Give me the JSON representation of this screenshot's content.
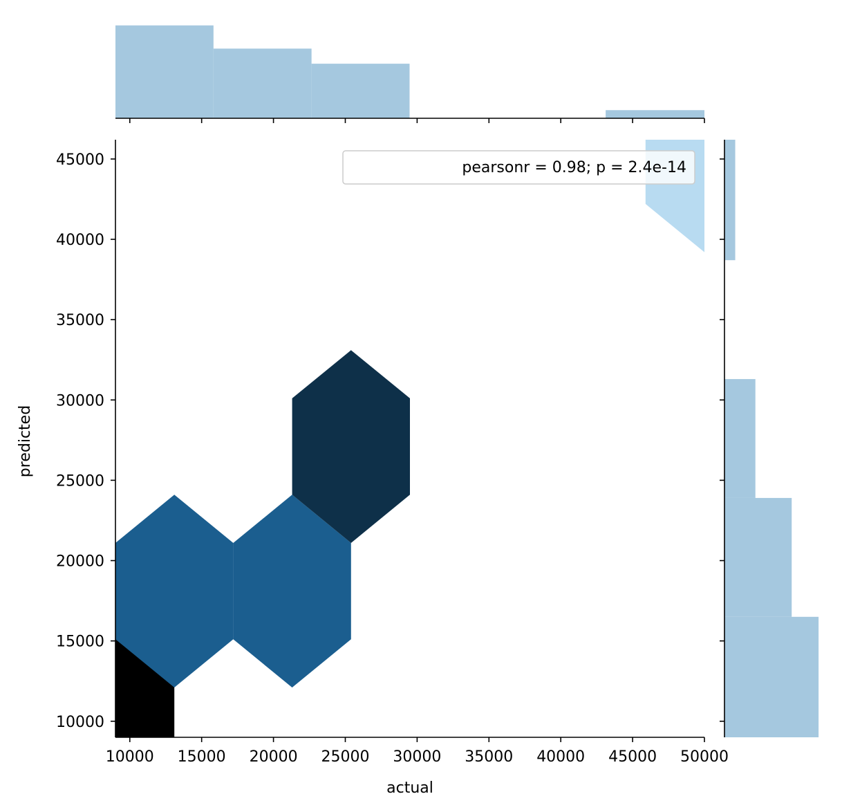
{
  "chart_data": {
    "type": "hexbin",
    "xlabel": "actual",
    "ylabel": "predicted",
    "xlim": [
      9000,
      50000
    ],
    "ylim": [
      9000,
      46200
    ],
    "xticks": [
      10000,
      15000,
      20000,
      25000,
      30000,
      35000,
      40000,
      45000,
      50000
    ],
    "yticks": [
      10000,
      15000,
      20000,
      25000,
      30000,
      35000,
      40000,
      45000
    ],
    "annotation": "pearsonr = 0.98; p = 2.4e-14",
    "legend_position": "upper right",
    "hexbins": [
      {
        "x": 9000,
        "y": 12000,
        "color": "#000000"
      },
      {
        "x": 13100,
        "y": 18100,
        "color": "#1b5e8f"
      },
      {
        "x": 21300,
        "y": 18100,
        "color": "#1b5e8f"
      },
      {
        "x": 25400,
        "y": 27100,
        "color": "#0e3049"
      },
      {
        "x": 50000,
        "y": 45200,
        "color": "#b8dbf1"
      }
    ],
    "hex_size": {
      "dx": 4100,
      "dy": 6000,
      "shoulder": 3000
    },
    "top_marginal": {
      "bins": [
        {
          "x0": 9000,
          "x1": 15825,
          "count": 4
        },
        {
          "x0": 15825,
          "x1": 22650,
          "count": 3
        },
        {
          "x0": 22650,
          "x1": 29475,
          "count": 2.35
        },
        {
          "x0": 29475,
          "x1": 36300,
          "count": 0
        },
        {
          "x0": 36300,
          "x1": 43125,
          "count": 0
        },
        {
          "x0": 43125,
          "x1": 50000,
          "count": 0.35
        }
      ],
      "max": 4.2,
      "xticks": [
        10000,
        15000,
        20000,
        25000,
        30000,
        35000,
        40000,
        45000,
        50000
      ]
    },
    "right_marginal": {
      "bins": [
        {
          "y0": 9000,
          "y1": 16500,
          "count": 7
        },
        {
          "y0": 16500,
          "y1": 23900,
          "count": 5
        },
        {
          "y0": 23900,
          "y1": 31300,
          "count": 2.3
        },
        {
          "y0": 38700,
          "y1": 46200,
          "count": 0.8
        }
      ],
      "max": 7.2,
      "yticks": [
        10000,
        15000,
        20000,
        25000,
        30000,
        35000,
        40000,
        45000
      ]
    },
    "colors": {
      "marginal": "#a5c8df",
      "axis": "#000000"
    }
  }
}
